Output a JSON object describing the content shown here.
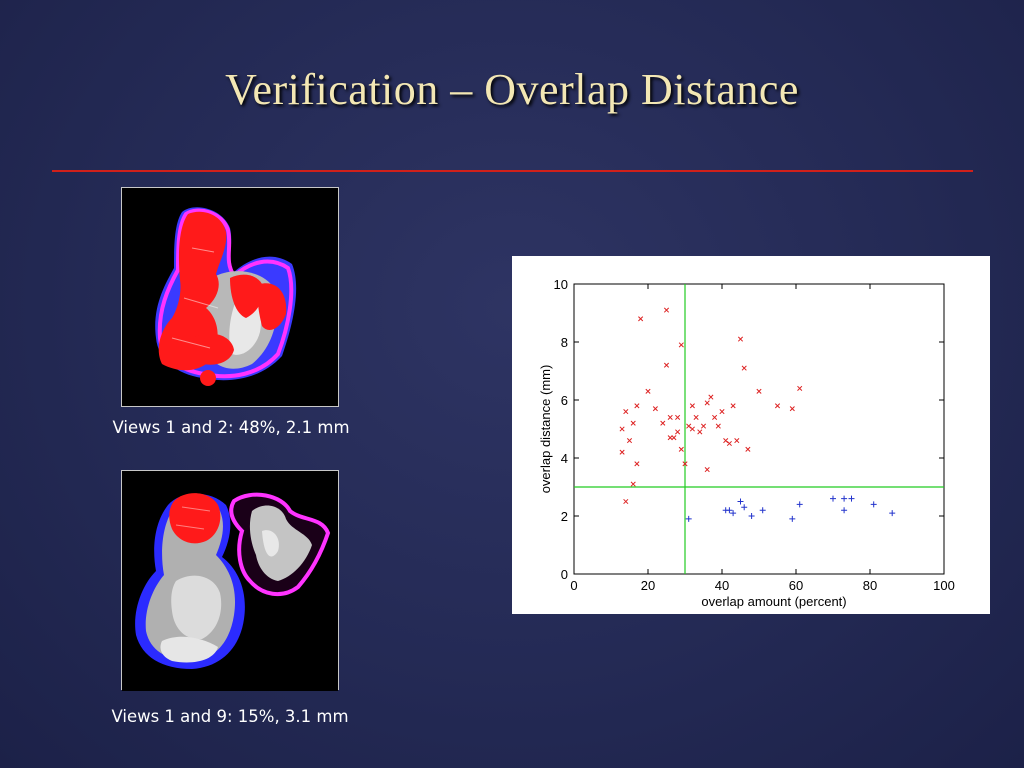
{
  "slide": {
    "title": "Verification – Overlap Distance",
    "colors": {
      "title": "#f3e7b4",
      "rule": "#d0201a",
      "background": "#262c57"
    }
  },
  "figures": [
    {
      "caption": "Views 1 and 2: 48%, 2.1 mm",
      "icon": "3d-surface-overlay-render"
    },
    {
      "caption": "Views 1 and 9: 15%, 3.1 mm",
      "icon": "3d-surface-overlay-render"
    }
  ],
  "chart_data": {
    "type": "scatter",
    "title": "",
    "xlabel": "overlap amount (percent)",
    "ylabel": "overlap distance (mm)",
    "xlim": [
      0,
      100
    ],
    "ylim": [
      0,
      10
    ],
    "xticks": [
      0,
      20,
      40,
      60,
      80,
      100
    ],
    "yticks": [
      0,
      2,
      4,
      6,
      8,
      10
    ],
    "grid": false,
    "threshold_lines": {
      "x": 30,
      "y": 3,
      "color": "#22cc22"
    },
    "series": [
      {
        "marker": "x",
        "color": "#dd2222",
        "points": [
          [
            13,
            4.2
          ],
          [
            13,
            5.0
          ],
          [
            14,
            5.6
          ],
          [
            14,
            2.5
          ],
          [
            15,
            4.6
          ],
          [
            16,
            3.1
          ],
          [
            16,
            5.2
          ],
          [
            17,
            3.8
          ],
          [
            17,
            5.8
          ],
          [
            18,
            8.8
          ],
          [
            20,
            6.3
          ],
          [
            22,
            5.7
          ],
          [
            24,
            5.2
          ],
          [
            25,
            9.1
          ],
          [
            25,
            7.2
          ],
          [
            26,
            4.7
          ],
          [
            26,
            5.4
          ],
          [
            27,
            4.7
          ],
          [
            28,
            4.9
          ],
          [
            28,
            5.4
          ],
          [
            29,
            7.9
          ],
          [
            29,
            4.3
          ],
          [
            30,
            3.8
          ],
          [
            31,
            5.1
          ],
          [
            32,
            5.0
          ],
          [
            32,
            5.8
          ],
          [
            33,
            5.4
          ],
          [
            34,
            4.9
          ],
          [
            35,
            5.1
          ],
          [
            36,
            3.6
          ],
          [
            36,
            5.9
          ],
          [
            37,
            6.1
          ],
          [
            38,
            5.4
          ],
          [
            39,
            5.1
          ],
          [
            40,
            5.6
          ],
          [
            41,
            4.6
          ],
          [
            42,
            4.5
          ],
          [
            43,
            5.8
          ],
          [
            44,
            4.6
          ],
          [
            45,
            8.1
          ],
          [
            46,
            7.1
          ],
          [
            47,
            4.3
          ],
          [
            50,
            6.3
          ],
          [
            55,
            5.8
          ],
          [
            59,
            5.7
          ],
          [
            61,
            6.4
          ]
        ]
      },
      {
        "marker": "+",
        "color": "#2233cc",
        "points": [
          [
            31,
            1.9
          ],
          [
            41,
            2.2
          ],
          [
            42,
            2.2
          ],
          [
            43,
            2.1
          ],
          [
            45,
            2.5
          ],
          [
            46,
            2.3
          ],
          [
            48,
            2.0
          ],
          [
            51,
            2.2
          ],
          [
            59,
            1.9
          ],
          [
            61,
            2.4
          ],
          [
            70,
            2.6
          ],
          [
            73,
            2.6
          ],
          [
            73,
            2.2
          ],
          [
            75,
            2.6
          ],
          [
            81,
            2.4
          ],
          [
            86,
            2.1
          ]
        ]
      }
    ]
  }
}
